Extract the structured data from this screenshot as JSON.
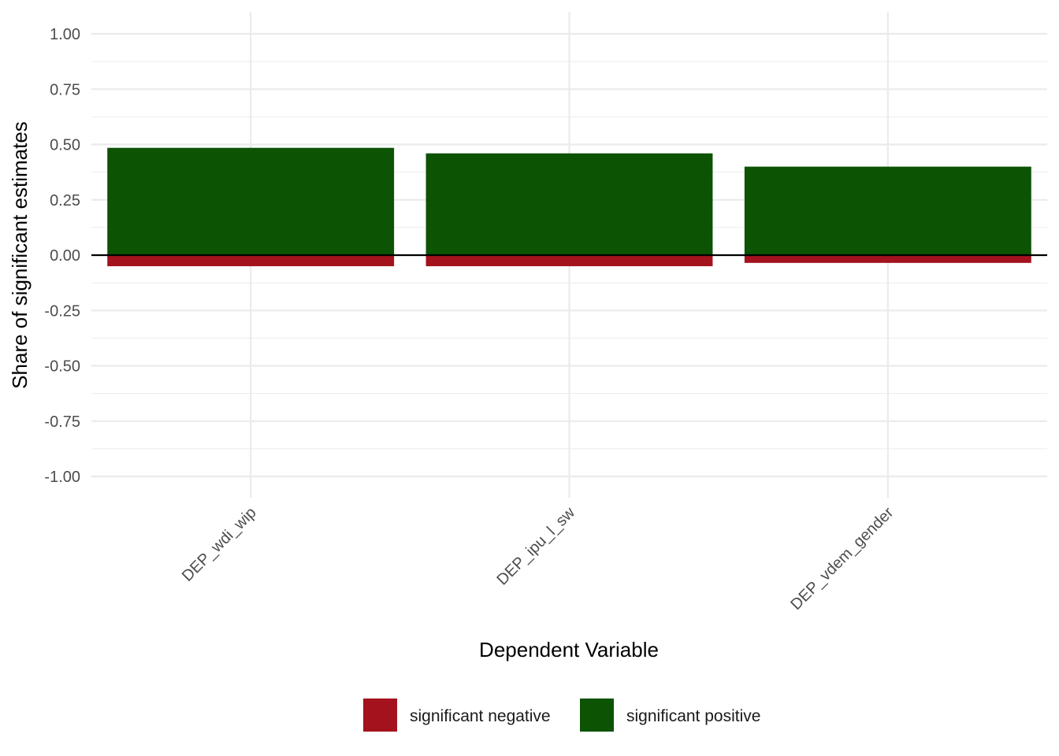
{
  "chart_data": {
    "type": "bar",
    "stacked": true,
    "categories": [
      "DEP_wdi_wip",
      "DEP_ipu_l_sw",
      "DEP_vdem_gender"
    ],
    "series": [
      {
        "name": "significant negative",
        "color": "#A3121D",
        "values": [
          -0.05,
          -0.05,
          -0.035
        ]
      },
      {
        "name": "significant positive",
        "color": "#0C5304",
        "values": [
          0.485,
          0.46,
          0.4
        ]
      }
    ],
    "xlabel": "Dependent Variable",
    "ylabel": "Share of significant estimates",
    "ylim": [
      -1.0,
      1.0
    ],
    "yticks": [
      "1.00",
      "0.75",
      "0.50",
      "0.25",
      "0.00",
      "-0.25",
      "-0.50",
      "-0.75",
      "-1.00"
    ],
    "ytick_values": [
      1.0,
      0.75,
      0.5,
      0.25,
      0.0,
      -0.25,
      -0.5,
      -0.75,
      -1.0
    ],
    "grid": true,
    "zero_line": true,
    "legend_position": "bottom"
  }
}
